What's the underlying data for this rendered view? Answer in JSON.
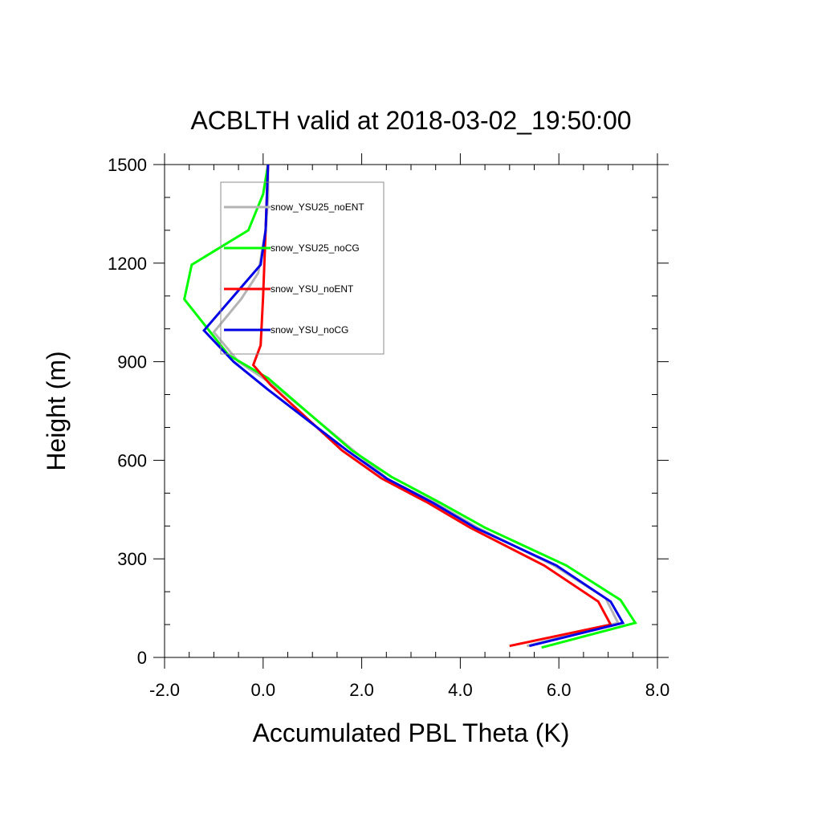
{
  "chart_data": {
    "type": "line",
    "title": "ACBLTH valid at 2018-03-02_19:50:00",
    "xlabel": "Accumulated PBL Theta (K)",
    "ylabel": "Height (m)",
    "xlim": [
      -2.0,
      8.0
    ],
    "ylim": [
      0,
      1500
    ],
    "x_ticks": [
      -2.0,
      0.0,
      2.0,
      4.0,
      6.0,
      8.0
    ],
    "x_tick_labels": [
      "-2.0",
      "0.0",
      "2.0",
      "4.0",
      "6.0",
      "8.0"
    ],
    "y_ticks": [
      0,
      300,
      600,
      900,
      1200,
      1500
    ],
    "y_tick_labels": [
      "0",
      "300",
      "600",
      "900",
      "1200",
      "1500"
    ],
    "grid": false,
    "legend_position": "top-left",
    "series": [
      {
        "name": "snow_YSU25_noENT",
        "color": "#b4b4b4",
        "points": [
          [
            5.35,
            35
          ],
          [
            7.2,
            105
          ],
          [
            6.95,
            180
          ],
          [
            5.9,
            280
          ],
          [
            4.35,
            395
          ],
          [
            3.5,
            470
          ],
          [
            2.55,
            540
          ],
          [
            1.75,
            640
          ],
          [
            0.3,
            820
          ],
          [
            -0.5,
            900
          ],
          [
            -1.0,
            990
          ],
          [
            -0.45,
            1090
          ],
          [
            -0.1,
            1170
          ],
          [
            0.05,
            1300
          ],
          [
            0.1,
            1400
          ],
          [
            0.1,
            1500
          ]
        ]
      },
      {
        "name": "snow_YSU25_noCG",
        "color": "#00ff00",
        "points": [
          [
            5.65,
            30
          ],
          [
            7.55,
            105
          ],
          [
            7.25,
            175
          ],
          [
            6.15,
            280
          ],
          [
            4.5,
            395
          ],
          [
            3.6,
            470
          ],
          [
            2.6,
            550
          ],
          [
            1.8,
            630
          ],
          [
            0.1,
            850
          ],
          [
            -0.7,
            920
          ],
          [
            -1.6,
            1090
          ],
          [
            -1.45,
            1195
          ],
          [
            -0.3,
            1300
          ],
          [
            0.0,
            1410
          ],
          [
            0.1,
            1500
          ]
        ]
      },
      {
        "name": "snow_YSU_noENT",
        "color": "#ff0000",
        "points": [
          [
            5.0,
            35
          ],
          [
            7.05,
            100
          ],
          [
            6.8,
            170
          ],
          [
            5.7,
            280
          ],
          [
            4.2,
            395
          ],
          [
            3.35,
            470
          ],
          [
            2.4,
            545
          ],
          [
            1.6,
            630
          ],
          [
            0.15,
            830
          ],
          [
            -0.2,
            890
          ],
          [
            -0.05,
            950
          ],
          [
            0.0,
            1100
          ],
          [
            0.05,
            1300
          ],
          [
            0.1,
            1500
          ]
        ]
      },
      {
        "name": "snow_YSU_noCG",
        "color": "#0000e6",
        "points": [
          [
            5.4,
            35
          ],
          [
            7.3,
            105
          ],
          [
            7.05,
            170
          ],
          [
            5.95,
            280
          ],
          [
            4.3,
            395
          ],
          [
            3.45,
            470
          ],
          [
            2.5,
            545
          ],
          [
            1.7,
            630
          ],
          [
            0.1,
            815
          ],
          [
            -0.6,
            900
          ],
          [
            -1.2,
            995
          ],
          [
            -0.05,
            1195
          ],
          [
            0.05,
            1300
          ],
          [
            0.1,
            1500
          ]
        ]
      }
    ]
  }
}
